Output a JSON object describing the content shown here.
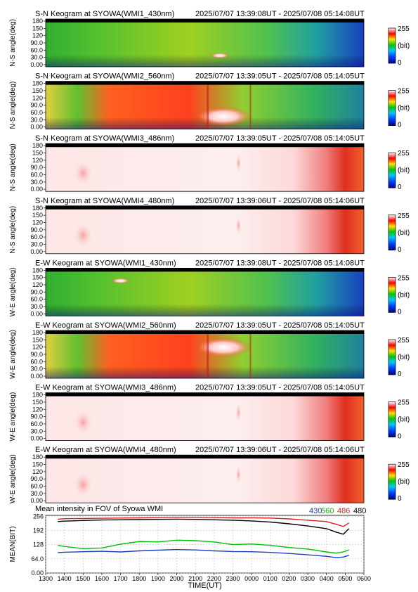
{
  "colorbar": {
    "max_label": "255",
    "unit_label": "(bit)",
    "min_label": "0"
  },
  "panels": [
    {
      "title": "S-N Keogram at SYOWA(WMI1_430nm)",
      "range": "2025/07/07 13:39:08UT - 2025/07/08 05:14:08UT",
      "ylabel": "N-S angle(deg)",
      "style": "green"
    },
    {
      "title": "S-N Keogram at SYOWA(WMI2_560nm)",
      "range": "2025/07/07 13:39:05UT - 2025/07/08 05:14:05UT",
      "ylabel": "N-S angle(deg)",
      "style": "red"
    },
    {
      "title": "S-N Keogram at SYOWA(WMI3_486nm)",
      "range": "2025/07/07 13:39:05UT - 2025/07/08 05:14:05UT",
      "ylabel": "N-S angle(deg)",
      "style": "pale"
    },
    {
      "title": "S-N Keogram at SYOWA(WMI4_480nm)",
      "range": "2025/07/07 13:39:06UT - 2025/07/08 05:14:06UT",
      "ylabel": "N-S angle(deg)",
      "style": "pale"
    },
    {
      "title": "E-W Keogram at SYOWA(WMI1_430nm)",
      "range": "2025/07/07 13:39:08UT - 2025/07/08 05:14:08UT",
      "ylabel": "W-E angle(deg)",
      "style": "green"
    },
    {
      "title": "E-W Keogram at SYOWA(WMI2_560nm)",
      "range": "2025/07/07 13:39:05UT - 2025/07/08 05:14:05UT",
      "ylabel": "W-E angle(deg)",
      "style": "red"
    },
    {
      "title": "E-W Keogram at SYOWA(WMI3_486nm)",
      "range": "2025/07/07 13:39:05UT - 2025/07/08 05:14:05UT",
      "ylabel": "W-E angle(deg)",
      "style": "pale"
    },
    {
      "title": "E-W Keogram at SYOWA(WMI4_480nm)",
      "range": "2025/07/07 13:39:06UT - 2025/07/08 05:14:06UT",
      "ylabel": "W-E angle(deg)",
      "style": "pale"
    }
  ],
  "angle_ticks": [
    "180",
    "150",
    "120",
    "90.0",
    "60.0",
    "30.0",
    "0.00"
  ],
  "mean_panel": {
    "title": "Mean intensity in FOV of Syowa WMI",
    "legend": [
      {
        "label": "430",
        "color": "#1f3fbf"
      },
      {
        "label": "560",
        "color": "#00c000"
      },
      {
        "label": "486",
        "color": "#e02020"
      },
      {
        "label": "480",
        "color": "#000000"
      }
    ],
    "ylabel": "MEAN(BIT)",
    "yticks": [
      "256",
      "192",
      "128",
      "64.0",
      "0.00"
    ],
    "xlabel": "TIME(UT)",
    "xticks": [
      "1300",
      "1400",
      "1500",
      "1600",
      "1700",
      "1800",
      "1900",
      "2000",
      "2100",
      "2200",
      "2300",
      "0000",
      "0100",
      "0200",
      "0300",
      "0400",
      "0500",
      "0600"
    ]
  },
  "chart_data": [
    {
      "type": "line",
      "title": "Mean intensity in FOV of Syowa WMI",
      "xlabel": "TIME(UT)",
      "ylabel": "MEAN(BIT)",
      "x_unit": "hours since 13:00 UT on 2025/07/07",
      "x": [
        0.65,
        1.0,
        2.0,
        3.0,
        4.0,
        5.0,
        6.0,
        7.0,
        8.0,
        9.0,
        10.0,
        11.0,
        12.0,
        13.0,
        14.0,
        15.0,
        15.5,
        15.9,
        16.2
      ],
      "xlim": [
        0,
        17
      ],
      "ylim": [
        0,
        260
      ],
      "grid": true,
      "series": [
        {
          "name": "430",
          "color": "#1f3fbf",
          "values": [
            92,
            94,
            96,
            98,
            95,
            100,
            103,
            106,
            104,
            100,
            97,
            96,
            93,
            88,
            82,
            75,
            70,
            72,
            80
          ]
        },
        {
          "name": "560",
          "color": "#00c000",
          "values": [
            125,
            120,
            110,
            113,
            130,
            142,
            140,
            148,
            146,
            140,
            128,
            131,
            125,
            115,
            108,
            95,
            90,
            95,
            104
          ]
        },
        {
          "name": "486",
          "color": "#e02020",
          "values": [
            243,
            245,
            246,
            247,
            248,
            249,
            250,
            251,
            251,
            250,
            249,
            249,
            248,
            244,
            238,
            232,
            220,
            210,
            226
          ]
        },
        {
          "name": "480",
          "color": "#000000",
          "values": [
            232,
            234,
            237,
            239,
            240,
            241,
            242,
            243,
            242,
            240,
            238,
            235,
            230,
            222,
            212,
            200,
            185,
            175,
            200
          ]
        }
      ]
    }
  ]
}
